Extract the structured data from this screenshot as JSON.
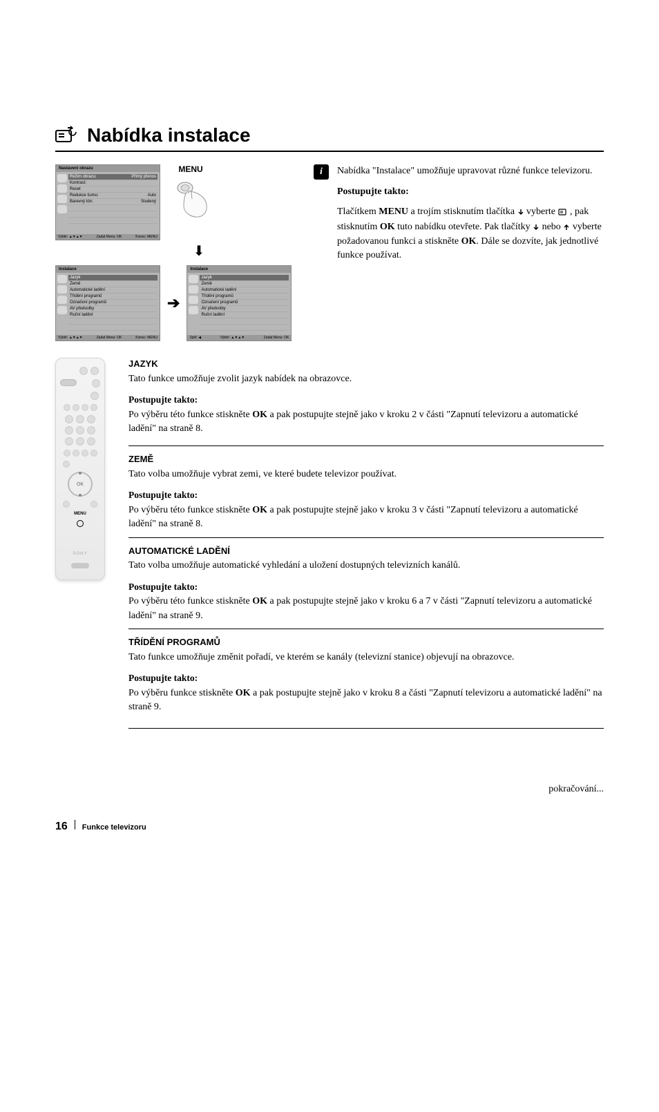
{
  "title": "Nabídka instalace",
  "title_icon": "settings-panel-icon",
  "menu_label": "MENU",
  "intro": {
    "para1": "Nabídka \"Instalace\" umožňuje upravovat různé funkce televizoru.",
    "sub_heading": "Postupujte takto:",
    "para2_parts": {
      "a": "Tlačítkem ",
      "menu": "MENU",
      "b": " a trojím stisknutím tlačítka ",
      "c": " vyberte ",
      "d": " , pak stisknutím ",
      "ok": "OK",
      "e": " tuto nabídku otevřete. Pak tlačítky ",
      "f": " nebo ",
      "g": " vyberte požadovanou funkci a stiskněte ",
      "ok2": "OK",
      "h": ". Dále se dozvíte, jak jednotlivé funkce používat."
    }
  },
  "osd": {
    "panel1": {
      "title": "Nastavení obrazu",
      "items": [
        {
          "l": "Režim obrazu:",
          "r": "Přímý přenos",
          "hl": true
        },
        {
          "l": "Kontrast:",
          "r": ""
        },
        {
          "l": "Reset",
          "r": ""
        },
        {
          "l": "Redukce šumu:",
          "r": "Auto"
        },
        {
          "l": "Barevný tón:",
          "r": "Studený"
        }
      ],
      "foot": [
        "Výběr: ▲▼▲▼",
        "Zadat Menu: OK",
        "Konec: MENU"
      ]
    },
    "panel2": {
      "title": "Instalace",
      "items": [
        "Jazyk",
        "Země",
        "Automatické ladění",
        "Třídění programů",
        "Označení programů",
        "AV předvolby",
        "Ruční ladění"
      ],
      "foot": [
        "Výběr: ▲▼▲▼",
        "Zadat Menu: OK",
        "Konec: MENU"
      ]
    },
    "panel3": {
      "title": "Instalace",
      "items": [
        "Jazyk",
        "Země",
        "Automatické ladění",
        "Třídění programů",
        "Označení programů",
        "AV předvolby",
        "Ruční ladění"
      ],
      "foot": [
        "Zpět: ◀",
        "Výběr: ▲▼▲▼",
        "Zadat Menu: OK"
      ]
    }
  },
  "remote": {
    "ok": "OK",
    "menu_label": "MENU",
    "brand": "SONY"
  },
  "sections": [
    {
      "heading": "JAZYK",
      "desc": "Tato funkce umožňuje zvolit jazyk nabídek na obrazovce.",
      "sub": "Postupujte takto:",
      "body_prefix": "Po výběru této funkce stiskněte ",
      "body_bold": "OK",
      "body_suffix": " a pak postupujte stejně jako v kroku 2 v části \"Zapnutí televizoru a automatické ladění\" na straně 8."
    },
    {
      "heading": "ZEMĚ",
      "desc": "Tato volba umožňuje vybrat zemi, ve které budete televizor používat.",
      "sub": "Postupujte takto:",
      "body_prefix": "Po výběru této funkce stiskněte ",
      "body_bold": "OK",
      "body_suffix": " a pak postupujte stejně jako v kroku 3 v části \"Zapnutí televizoru a automatické ladění\" na straně 8."
    },
    {
      "heading": "AUTOMATICKÉ LADĚNÍ",
      "desc": "Tato volba umožňuje automatické vyhledání a uložení dostupných televizních kanálů.",
      "sub": "Postupujte takto:",
      "body_prefix": "Po výběru této funkce stiskněte ",
      "body_bold": "OK",
      "body_suffix": " a pak postupujte stejně jako v kroku 6 a 7 v části \"Zapnutí televizoru a automatické ladění\" na straně 9."
    },
    {
      "heading": "TŘÍDĚNÍ PROGRAMŮ",
      "desc": "Tato funkce umožňuje změnit pořadí, ve kterém se kanály (televizní stanice) objevují na obrazovce.",
      "sub": "Postupujte takto:",
      "body_prefix": "Po výběru funkce stiskněte ",
      "body_bold": "OK",
      "body_suffix": " a pak postupujte stejně jako v kroku 8 a části \"Zapnutí televizoru a automatické ladění\" na straně 9."
    }
  ],
  "continued": "pokračování...",
  "footer": {
    "page": "16",
    "text": "Funkce televizoru"
  },
  "colors": {
    "osd_bg": "#b7b7b7",
    "osd_bar": "#9a9a9a",
    "highlight": "#6b6b6b",
    "rule": "#000000"
  }
}
